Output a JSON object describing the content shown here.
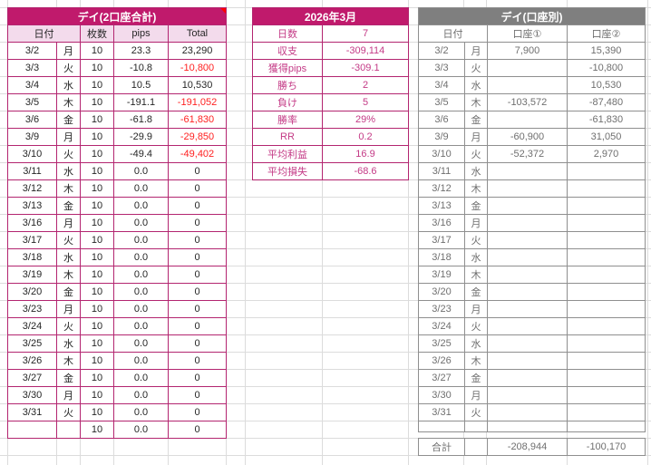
{
  "combined_table": {
    "title": "デイ(2口座合計)",
    "headers": {
      "date": "日付",
      "lots": "枚数",
      "pips": "pips",
      "total": "Total"
    },
    "rows": [
      {
        "date": "3/2",
        "day": "月",
        "lots": "10",
        "pips": "23.3",
        "total": "23,290"
      },
      {
        "date": "3/3",
        "day": "火",
        "lots": "10",
        "pips": "-10.8",
        "total": "-10,800"
      },
      {
        "date": "3/4",
        "day": "水",
        "lots": "10",
        "pips": "10.5",
        "total": "10,530"
      },
      {
        "date": "3/5",
        "day": "木",
        "lots": "10",
        "pips": "-191.1",
        "total": "-191,052"
      },
      {
        "date": "3/6",
        "day": "金",
        "lots": "10",
        "pips": "-61.8",
        "total": "-61,830"
      },
      {
        "date": "3/9",
        "day": "月",
        "lots": "10",
        "pips": "-29.9",
        "total": "-29,850"
      },
      {
        "date": "3/10",
        "day": "火",
        "lots": "10",
        "pips": "-49.4",
        "total": "-49,402"
      },
      {
        "date": "3/11",
        "day": "水",
        "lots": "10",
        "pips": "0.0",
        "total": "0"
      },
      {
        "date": "3/12",
        "day": "木",
        "lots": "10",
        "pips": "0.0",
        "total": "0"
      },
      {
        "date": "3/13",
        "day": "金",
        "lots": "10",
        "pips": "0.0",
        "total": "0"
      },
      {
        "date": "3/16",
        "day": "月",
        "lots": "10",
        "pips": "0.0",
        "total": "0"
      },
      {
        "date": "3/17",
        "day": "火",
        "lots": "10",
        "pips": "0.0",
        "total": "0"
      },
      {
        "date": "3/18",
        "day": "水",
        "lots": "10",
        "pips": "0.0",
        "total": "0"
      },
      {
        "date": "3/19",
        "day": "木",
        "lots": "10",
        "pips": "0.0",
        "total": "0"
      },
      {
        "date": "3/20",
        "day": "金",
        "lots": "10",
        "pips": "0.0",
        "total": "0"
      },
      {
        "date": "3/23",
        "day": "月",
        "lots": "10",
        "pips": "0.0",
        "total": "0"
      },
      {
        "date": "3/24",
        "day": "火",
        "lots": "10",
        "pips": "0.0",
        "total": "0"
      },
      {
        "date": "3/25",
        "day": "水",
        "lots": "10",
        "pips": "0.0",
        "total": "0"
      },
      {
        "date": "3/26",
        "day": "木",
        "lots": "10",
        "pips": "0.0",
        "total": "0"
      },
      {
        "date": "3/27",
        "day": "金",
        "lots": "10",
        "pips": "0.0",
        "total": "0"
      },
      {
        "date": "3/30",
        "day": "月",
        "lots": "10",
        "pips": "0.0",
        "total": "0"
      },
      {
        "date": "3/31",
        "day": "火",
        "lots": "10",
        "pips": "0.0",
        "total": "0"
      },
      {
        "date": "",
        "day": "",
        "lots": "10",
        "pips": "0.0",
        "total": "0"
      }
    ]
  },
  "monthly_summary": {
    "title": "2026年3月",
    "rows": [
      {
        "label": "日数",
        "value": "7"
      },
      {
        "label": "収支",
        "value": "-309,114",
        "red": true
      },
      {
        "label": "獲得pips",
        "value": "-309.1"
      },
      {
        "label": "勝ち",
        "value": "2"
      },
      {
        "label": "負け",
        "value": "5"
      },
      {
        "label": "勝率",
        "value": "29%"
      },
      {
        "label": "RR",
        "value": "0.2"
      },
      {
        "label": "平均利益",
        "value": "16.9"
      },
      {
        "label": "平均損失",
        "value": "-68.6"
      }
    ]
  },
  "per_account_table": {
    "title": "デイ(口座別)",
    "headers": {
      "date": "日付",
      "account1": "口座①",
      "account2": "口座②"
    },
    "rows": [
      {
        "date": "3/2",
        "day": "月",
        "account1": "7,900",
        "account2": "15,390"
      },
      {
        "date": "3/3",
        "day": "火",
        "account1": "",
        "account2": "-10,800"
      },
      {
        "date": "3/4",
        "day": "水",
        "account1": "",
        "account2": "10,530"
      },
      {
        "date": "3/5",
        "day": "木",
        "account1": "-103,572",
        "account2": "-87,480"
      },
      {
        "date": "3/6",
        "day": "金",
        "account1": "",
        "account2": "-61,830"
      },
      {
        "date": "3/9",
        "day": "月",
        "account1": "-60,900",
        "account2": "31,050"
      },
      {
        "date": "3/10",
        "day": "火",
        "account1": "-52,372",
        "account2": "2,970"
      },
      {
        "date": "3/11",
        "day": "水",
        "account1": "",
        "account2": ""
      },
      {
        "date": "3/12",
        "day": "木",
        "account1": "",
        "account2": ""
      },
      {
        "date": "3/13",
        "day": "金",
        "account1": "",
        "account2": ""
      },
      {
        "date": "3/16",
        "day": "月",
        "account1": "",
        "account2": ""
      },
      {
        "date": "3/17",
        "day": "火",
        "account1": "",
        "account2": ""
      },
      {
        "date": "3/18",
        "day": "水",
        "account1": "",
        "account2": ""
      },
      {
        "date": "3/19",
        "day": "木",
        "account1": "",
        "account2": ""
      },
      {
        "date": "3/20",
        "day": "金",
        "account1": "",
        "account2": ""
      },
      {
        "date": "3/23",
        "day": "月",
        "account1": "",
        "account2": ""
      },
      {
        "date": "3/24",
        "day": "火",
        "account1": "",
        "account2": ""
      },
      {
        "date": "3/25",
        "day": "水",
        "account1": "",
        "account2": ""
      },
      {
        "date": "3/26",
        "day": "木",
        "account1": "",
        "account2": ""
      },
      {
        "date": "3/27",
        "day": "金",
        "account1": "",
        "account2": ""
      },
      {
        "date": "3/30",
        "day": "月",
        "account1": "",
        "account2": ""
      },
      {
        "date": "3/31",
        "day": "火",
        "account1": "",
        "account2": ""
      },
      {
        "date": "",
        "day": "",
        "account1": "",
        "account2": "",
        "short": true
      }
    ],
    "total": {
      "label": "合計",
      "account1": "-208,944",
      "account2": "-100,170"
    }
  },
  "colors": {
    "header_magenta": "#c01a6c",
    "border_magenta": "#b32570",
    "light_pink": "#f3dbec",
    "magenta_text": "#c43a86",
    "negative_red": "#ff2121",
    "header_gray": "#7f7f7f",
    "border_gray": "#8f8f8f",
    "gray_text": "#6f6f6f",
    "gridline": "#dcdcdc",
    "comment_marker_red": "#ff0000"
  }
}
